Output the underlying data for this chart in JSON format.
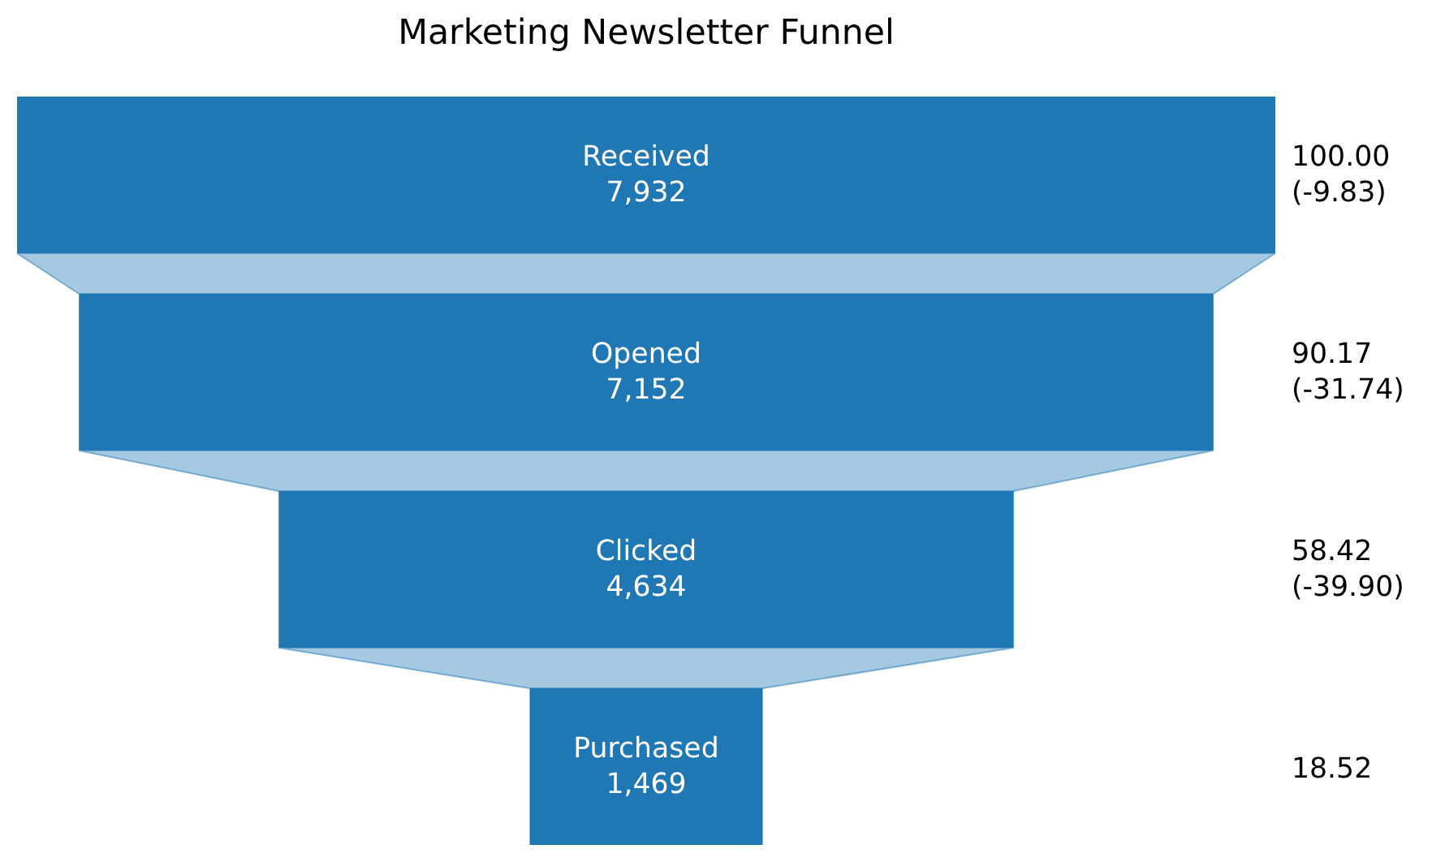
{
  "chart_data": {
    "type": "other",
    "title": "Marketing Newsletter Funnel",
    "categories": [
      "Received",
      "Opened",
      "Clicked",
      "Purchased"
    ],
    "values": [
      7932,
      7152,
      4634,
      1469
    ],
    "color": "#1f77b4",
    "value_labels": [
      "7,932",
      "7,152",
      "4,634",
      "1,469"
    ],
    "annotations": [
      {
        "text": "100.00\n(-9.83)",
        "y": "Received"
      },
      {
        "text": "90.17\n(-31.74)",
        "y": "Opened"
      },
      {
        "text": "58.42\n(-39.90)",
        "y": "Clicked"
      },
      {
        "text": "18.52",
        "y": "Purchased"
      }
    ]
  }
}
